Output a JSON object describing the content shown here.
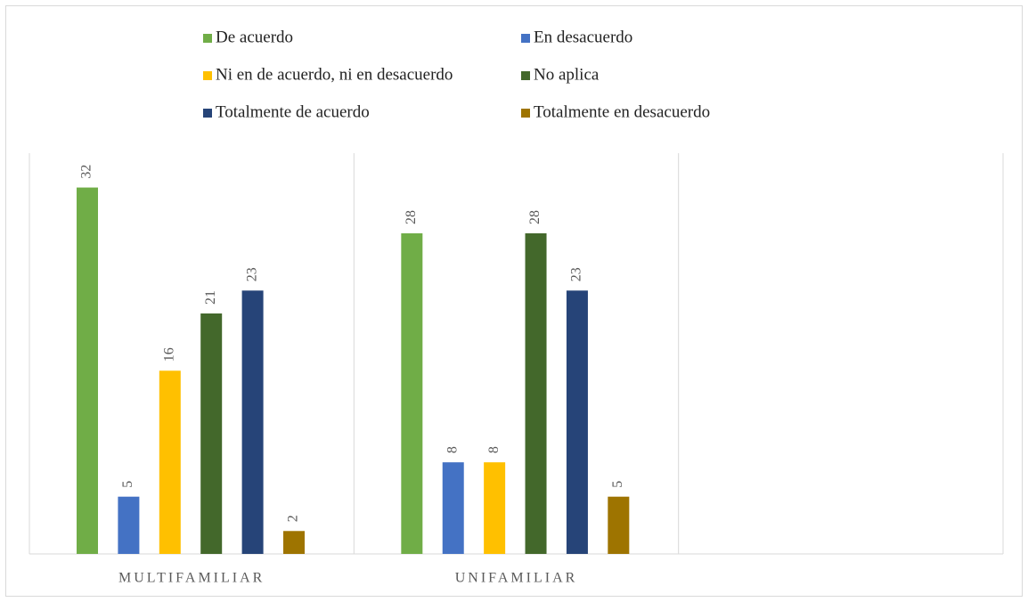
{
  "chart_data": {
    "type": "bar",
    "categories": [
      "MULTIFAMILIAR",
      "UNIFAMILIAR",
      null
    ],
    "series": [
      {
        "name": "De acuerdo",
        "color": "#70ad47",
        "values": [
          32,
          28,
          null
        ]
      },
      {
        "name": "En desacuerdo",
        "color": "#4472c4",
        "values": [
          5,
          8,
          null
        ]
      },
      {
        "name": "Ni en de acuerdo, ni en desacuerdo",
        "color": "#ffc000",
        "values": [
          16,
          8,
          null
        ]
      },
      {
        "name": "No aplica",
        "color": "#43682b",
        "values": [
          21,
          28,
          null
        ]
      },
      {
        "name": "Totalmente de acuerdo",
        "color": "#264478",
        "values": [
          23,
          23,
          null
        ]
      },
      {
        "name": "Totalmente en desacuerdo",
        "color": "#9e7400",
        "values": [
          2,
          5,
          null
        ]
      }
    ],
    "ylim": [
      0,
      35
    ],
    "legend": "top"
  }
}
